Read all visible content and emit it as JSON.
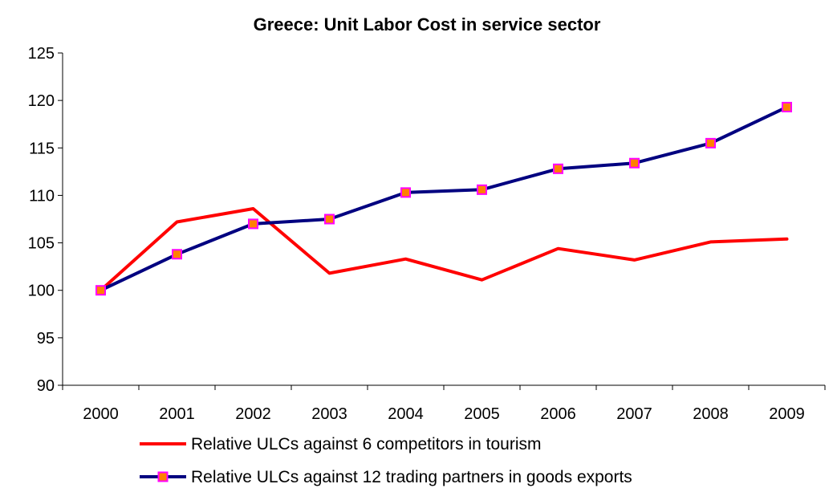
{
  "chart_data": {
    "type": "line",
    "title": "Greece: Unit Labor Cost in service sector",
    "xlabel": "",
    "ylabel": "",
    "categories": [
      "2000",
      "2001",
      "2002",
      "2003",
      "2004",
      "2005",
      "2006",
      "2007",
      "2008",
      "2009"
    ],
    "ylim": [
      90,
      125
    ],
    "yticks": [
      "90",
      "95",
      "100",
      "105",
      "110",
      "115",
      "120",
      "125"
    ],
    "grid": false,
    "legend_position": "bottom",
    "series": [
      {
        "name": "Relative ULCs against 6 competitors in tourism",
        "color": "#ff0000",
        "marker": "none",
        "values": [
          100,
          107.2,
          108.6,
          101.8,
          103.3,
          101.1,
          104.4,
          103.2,
          105.1,
          105.4
        ]
      },
      {
        "name": "Relative ULCs against 12 trading partners in goods exports",
        "color": "#000080",
        "marker": "square",
        "marker_fill": "#ff8000",
        "marker_edge": "#ff00ff",
        "values": [
          100,
          103.8,
          107.0,
          107.5,
          110.3,
          110.6,
          112.8,
          113.4,
          115.5,
          119.3
        ]
      }
    ]
  }
}
